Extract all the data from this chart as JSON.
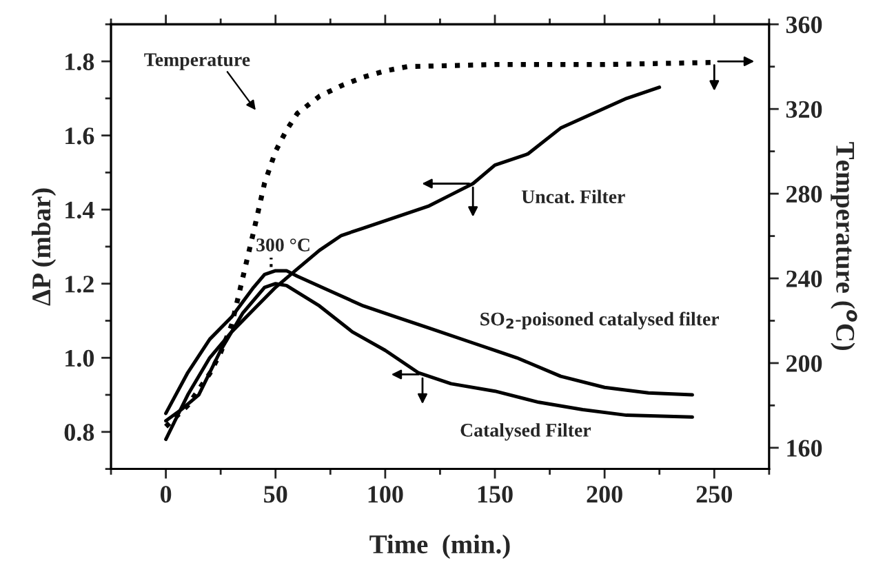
{
  "chart_data": {
    "type": "line",
    "xlabel": "Time  (min.)",
    "ylabel": "ΔP (mbar)",
    "y2label": "Temperature ($^{o}$C)",
    "xlim": [
      -25,
      275
    ],
    "xticks": [
      0,
      50,
      100,
      150,
      200,
      250
    ],
    "ylim": [
      0.7,
      1.9
    ],
    "yticks": [
      {
        "value": 0.8,
        "label": "0.8"
      },
      {
        "value": 1.0,
        "label": "1.0"
      },
      {
        "value": 1.2,
        "label": "1.2"
      },
      {
        "value": 1.4,
        "label": "1.4"
      },
      {
        "value": 1.6,
        "label": "1.6"
      },
      {
        "value": 1.8,
        "label": "1.8"
      }
    ],
    "y2lim": [
      150,
      360
    ],
    "y2ticks": [
      160,
      200,
      240,
      280,
      320,
      360
    ],
    "grid": false,
    "legend": false,
    "marker": "none",
    "series": [
      {
        "color": "#000000",
        "line_style": "solid",
        "x": [
          0,
          10,
          20,
          30,
          40,
          50,
          60,
          70,
          80,
          90,
          100,
          110,
          120,
          130,
          140,
          150,
          165,
          180,
          195,
          210,
          225
        ],
        "values": [
          0.78,
          0.9,
          1.0,
          1.07,
          1.13,
          1.19,
          1.24,
          1.29,
          1.33,
          1.35,
          1.37,
          1.39,
          1.41,
          1.44,
          1.47,
          1.52,
          1.55,
          1.62,
          1.66,
          1.7,
          1.73
        ]
      },
      {
        "color": "#000000",
        "line_style": "solid",
        "x": [
          0,
          10,
          20,
          30,
          40,
          45,
          50,
          55,
          60,
          75,
          90,
          105,
          120,
          140,
          160,
          180,
          200,
          220,
          240
        ],
        "values": [
          0.85,
          0.96,
          1.05,
          1.11,
          1.19,
          1.225,
          1.235,
          1.235,
          1.22,
          1.18,
          1.14,
          1.11,
          1.08,
          1.04,
          1.0,
          0.95,
          0.92,
          0.905,
          0.9
        ]
      },
      {
        "color": "#000000",
        "line_style": "solid",
        "x": [
          0,
          7,
          15,
          25,
          35,
          45,
          50,
          55,
          70,
          85,
          100,
          115,
          130,
          150,
          170,
          190,
          210,
          240
        ],
        "values": [
          0.83,
          0.86,
          0.9,
          1.02,
          1.12,
          1.19,
          1.2,
          1.195,
          1.14,
          1.07,
          1.02,
          0.96,
          0.93,
          0.91,
          0.88,
          0.86,
          0.845,
          0.84
        ]
      },
      {
        "color": "#000000",
        "line_style": "dotted",
        "axis": "y2",
        "x": [
          0,
          10,
          20,
          25,
          30,
          35,
          40,
          45,
          50,
          55,
          60,
          70,
          80,
          90,
          100,
          110,
          150,
          200,
          250
        ],
        "values": [
          170,
          180,
          195,
          205,
          218,
          240,
          262,
          285,
          300,
          310,
          318,
          326,
          331,
          335,
          338,
          340,
          341,
          341,
          342
        ]
      }
    ],
    "annotations": [
      "Temperature",
      "300 °C",
      "Uncat. Filter",
      "SO$_{2}$-poisoned catalysed filter",
      "Catalysed Filter"
    ]
  }
}
